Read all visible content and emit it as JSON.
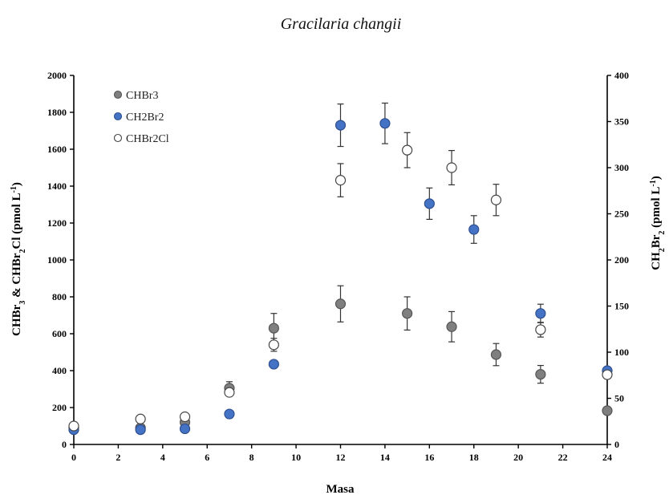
{
  "chart_data": {
    "type": "scatter",
    "title": "Gracilaria changii",
    "xlabel": "Masa",
    "ylabel_left": {
      "parts": [
        {
          "t": "CHBr",
          "sub": false
        },
        {
          "t": "3",
          "sub": true
        },
        {
          "t": " & CHBr",
          "sub": false
        },
        {
          "t": "2",
          "sub": true
        },
        {
          "t": "Cl (pmol L",
          "sub": false
        },
        {
          "t": "-1",
          "sup": true
        },
        {
          "t": ")",
          "sub": false
        }
      ]
    },
    "ylabel_right": {
      "parts": [
        {
          "t": "CH",
          "sub": false
        },
        {
          "t": "2",
          "sub": true
        },
        {
          "t": "Br",
          "sub": false
        },
        {
          "t": "2",
          "sub": true
        },
        {
          "t": " (pmol L",
          "sub": false
        },
        {
          "t": "-1",
          "sup": true
        },
        {
          "t": ")",
          "sub": false
        }
      ]
    },
    "xlim": [
      0,
      24
    ],
    "xticks": [
      0,
      2,
      4,
      6,
      8,
      10,
      12,
      14,
      16,
      18,
      20,
      22,
      24
    ],
    "ylim_left": [
      0,
      2000
    ],
    "yticks_left": [
      0,
      200,
      400,
      600,
      800,
      1000,
      1200,
      1400,
      1600,
      1800,
      2000
    ],
    "ylim_right": [
      0,
      400
    ],
    "yticks_right": [
      0,
      50,
      100,
      150,
      200,
      250,
      300,
      350,
      400
    ],
    "grid": false,
    "legend_position": "top-left",
    "series": [
      {
        "name": "CHBr3",
        "axis": "left",
        "marker": "filled",
        "fill": "#7f7f7f",
        "stroke": "#555555",
        "points": [
          {
            "x": 0,
            "y": 90,
            "err": 0
          },
          {
            "x": 3,
            "y": 90,
            "err": 0
          },
          {
            "x": 5,
            "y": 120,
            "err": 0
          },
          {
            "x": 7,
            "y": 305,
            "err": 35
          },
          {
            "x": 9,
            "y": 630,
            "err": 80
          },
          {
            "x": 12,
            "y": 762,
            "err": 98
          },
          {
            "x": 15,
            "y": 710,
            "err": 90
          },
          {
            "x": 17,
            "y": 638,
            "err": 82
          },
          {
            "x": 19,
            "y": 487,
            "err": 60
          },
          {
            "x": 21,
            "y": 380,
            "err": 48
          },
          {
            "x": 24,
            "y": 183,
            "err": 0
          }
        ]
      },
      {
        "name": "CH2Br2",
        "axis": "right",
        "marker": "filled",
        "fill": "#4472c4",
        "stroke": "#2f4f8f",
        "points": [
          {
            "x": 0,
            "y": 16,
            "err": 0
          },
          {
            "x": 3,
            "y": 16,
            "err": 0
          },
          {
            "x": 5,
            "y": 17,
            "err": 0
          },
          {
            "x": 7,
            "y": 33,
            "err": 0
          },
          {
            "x": 9,
            "y": 87,
            "err": 4
          },
          {
            "x": 12,
            "y": 346,
            "err": 23
          },
          {
            "x": 14,
            "y": 348,
            "err": 22
          },
          {
            "x": 16,
            "y": 261,
            "err": 17
          },
          {
            "x": 18,
            "y": 233,
            "err": 15
          },
          {
            "x": 21,
            "y": 142,
            "err": 10
          },
          {
            "x": 24,
            "y": 80,
            "err": 0
          }
        ]
      },
      {
        "name": "CHBr2Cl",
        "axis": "left",
        "marker": "open",
        "fill": "#ffffff",
        "stroke": "#444444",
        "points": [
          {
            "x": 0,
            "y": 100,
            "err": 0
          },
          {
            "x": 3,
            "y": 138,
            "err": 0
          },
          {
            "x": 5,
            "y": 150,
            "err": 0
          },
          {
            "x": 7,
            "y": 282,
            "err": 0
          },
          {
            "x": 9,
            "y": 540,
            "err": 35
          },
          {
            "x": 12,
            "y": 1432,
            "err": 90
          },
          {
            "x": 15,
            "y": 1595,
            "err": 95
          },
          {
            "x": 17,
            "y": 1500,
            "err": 93
          },
          {
            "x": 19,
            "y": 1325,
            "err": 85
          },
          {
            "x": 21,
            "y": 622,
            "err": 40
          },
          {
            "x": 24,
            "y": 378,
            "err": 0
          }
        ]
      }
    ]
  }
}
